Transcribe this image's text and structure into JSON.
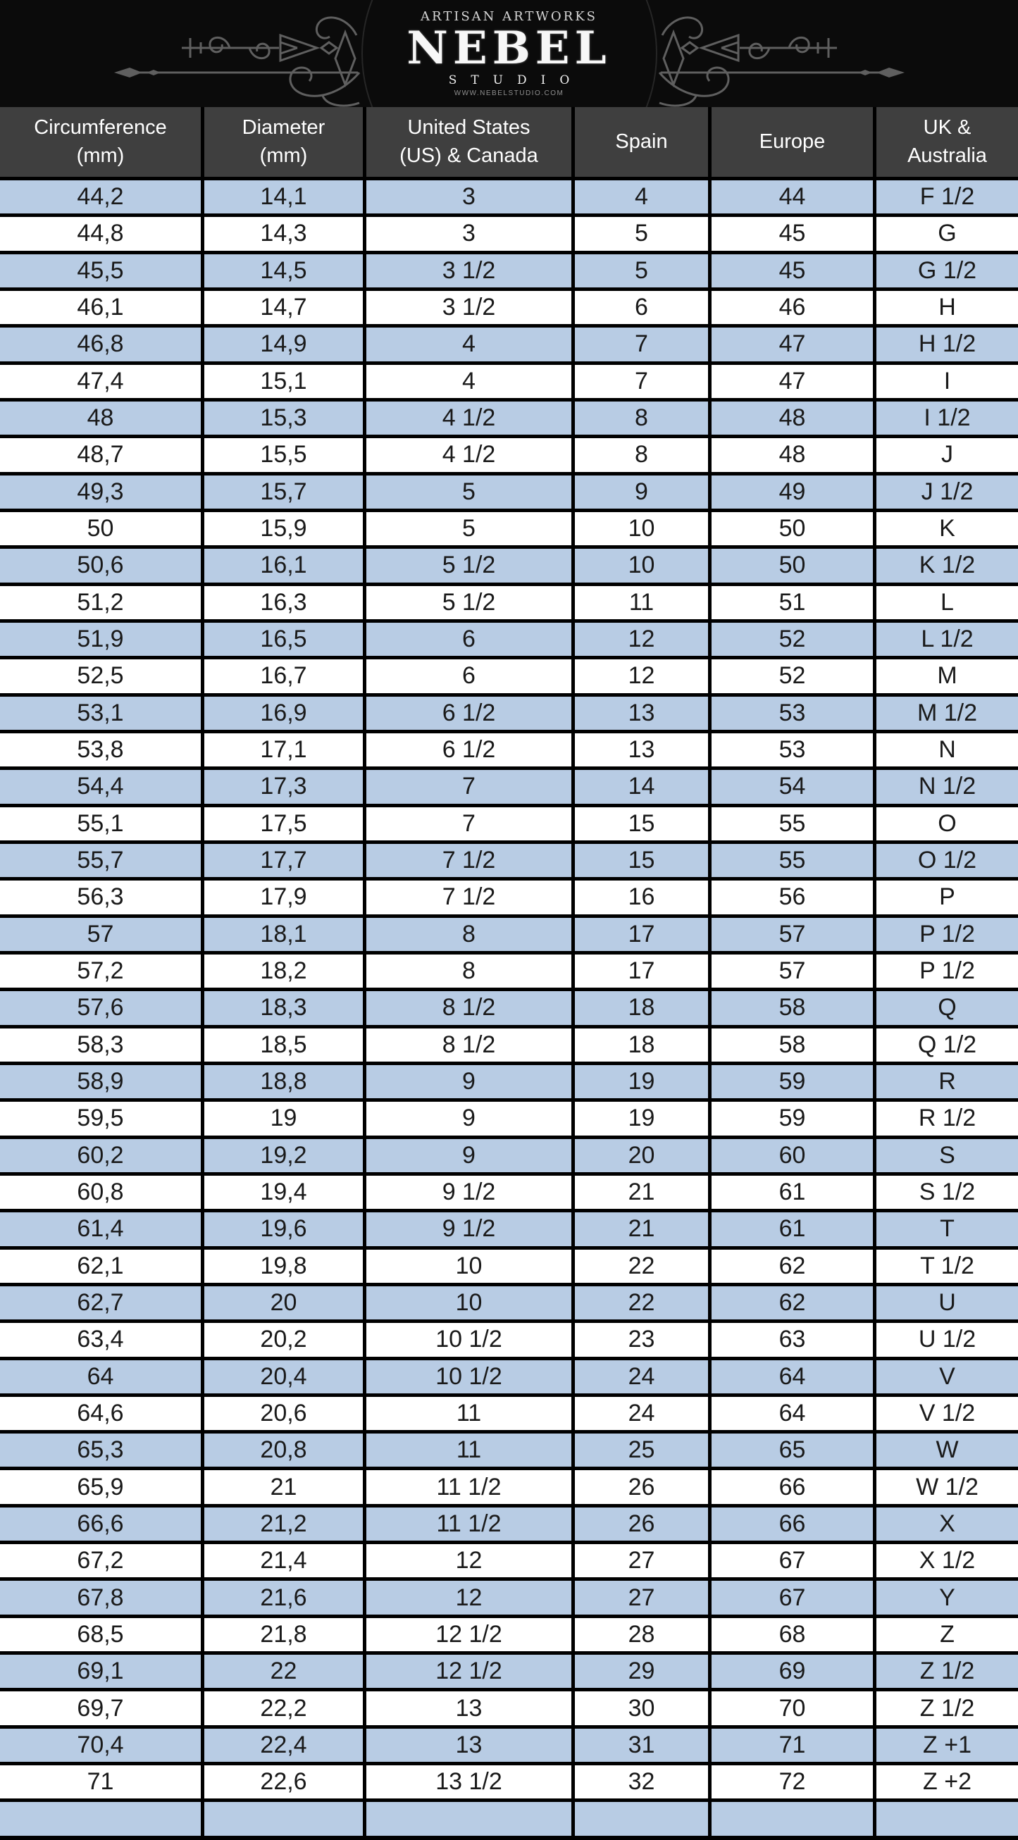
{
  "brand": {
    "tagline": "ARTISAN ARTWORKS",
    "name": "NEBEL",
    "subtitle": "STUDIO",
    "website": "WWW.NEBELSTUDIO.COM"
  },
  "table": {
    "header": [
      {
        "lines": [
          "Circumference",
          "(mm)"
        ]
      },
      {
        "lines": [
          "Diameter",
          "(mm)"
        ]
      },
      {
        "lines": [
          "United States",
          "(US) & Canada"
        ]
      },
      {
        "lines": [
          "Spain"
        ]
      },
      {
        "lines": [
          "Europe"
        ]
      },
      {
        "lines": [
          "UK &",
          "Australia"
        ]
      }
    ],
    "column_keys": [
      "circumference-mm",
      "diameter-mm",
      "us-canada",
      "spain",
      "europe",
      "uk-australia"
    ],
    "rows": [
      [
        "44,2",
        "14,1",
        "3",
        "4",
        "44",
        "F 1/2"
      ],
      [
        "44,8",
        "14,3",
        "3",
        "5",
        "45",
        "G"
      ],
      [
        "45,5",
        "14,5",
        "3 1/2",
        "5",
        "45",
        "G 1/2"
      ],
      [
        "46,1",
        "14,7",
        "3 1/2",
        "6",
        "46",
        "H"
      ],
      [
        "46,8",
        "14,9",
        "4",
        "7",
        "47",
        "H 1/2"
      ],
      [
        "47,4",
        "15,1",
        "4",
        "7",
        "47",
        "I"
      ],
      [
        "48",
        "15,3",
        "4 1/2",
        "8",
        "48",
        "I 1/2"
      ],
      [
        "48,7",
        "15,5",
        "4 1/2",
        "8",
        "48",
        "J"
      ],
      [
        "49,3",
        "15,7",
        "5",
        "9",
        "49",
        "J 1/2"
      ],
      [
        "50",
        "15,9",
        "5",
        "10",
        "50",
        "K"
      ],
      [
        "50,6",
        "16,1",
        "5 1/2",
        "10",
        "50",
        "K 1/2"
      ],
      [
        "51,2",
        "16,3",
        "5 1/2",
        "11",
        "51",
        "L"
      ],
      [
        "51,9",
        "16,5",
        "6",
        "12",
        "52",
        "L 1/2"
      ],
      [
        "52,5",
        "16,7",
        "6",
        "12",
        "52",
        "M"
      ],
      [
        "53,1",
        "16,9",
        "6 1/2",
        "13",
        "53",
        "M 1/2"
      ],
      [
        "53,8",
        "17,1",
        "6 1/2",
        "13",
        "53",
        "N"
      ],
      [
        "54,4",
        "17,3",
        "7",
        "14",
        "54",
        "N 1/2"
      ],
      [
        "55,1",
        "17,5",
        "7",
        "15",
        "55",
        "O"
      ],
      [
        "55,7",
        "17,7",
        "7 1/2",
        "15",
        "55",
        "O 1/2"
      ],
      [
        "56,3",
        "17,9",
        "7 1/2",
        "16",
        "56",
        "P"
      ],
      [
        "57",
        "18,1",
        "8",
        "17",
        "57",
        "P 1/2"
      ],
      [
        "57,2",
        "18,2",
        "8",
        "17",
        "57",
        "P 1/2"
      ],
      [
        "57,6",
        "18,3",
        "8 1/2",
        "18",
        "58",
        "Q"
      ],
      [
        "58,3",
        "18,5",
        "8 1/2",
        "18",
        "58",
        "Q 1/2"
      ],
      [
        "58,9",
        "18,8",
        "9",
        "19",
        "59",
        "R"
      ],
      [
        "59,5",
        "19",
        "9",
        "19",
        "59",
        "R 1/2"
      ],
      [
        "60,2",
        "19,2",
        "9",
        "20",
        "60",
        "S"
      ],
      [
        "60,8",
        "19,4",
        "9 1/2",
        "21",
        "61",
        "S 1/2"
      ],
      [
        "61,4",
        "19,6",
        "9 1/2",
        "21",
        "61",
        "T"
      ],
      [
        "62,1",
        "19,8",
        "10",
        "22",
        "62",
        "T 1/2"
      ],
      [
        "62,7",
        "20",
        "10",
        "22",
        "62",
        "U"
      ],
      [
        "63,4",
        "20,2",
        "10 1/2",
        "23",
        "63",
        "U 1/2"
      ],
      [
        "64",
        "20,4",
        "10 1/2",
        "24",
        "64",
        "V"
      ],
      [
        "64,6",
        "20,6",
        "11",
        "24",
        "64",
        "V 1/2"
      ],
      [
        "65,3",
        "20,8",
        "11",
        "25",
        "65",
        "W"
      ],
      [
        "65,9",
        "21",
        "11 1/2",
        "26",
        "66",
        "W 1/2"
      ],
      [
        "66,6",
        "21,2",
        "11 1/2",
        "26",
        "66",
        "X"
      ],
      [
        "67,2",
        "21,4",
        "12",
        "27",
        "67",
        "X 1/2"
      ],
      [
        "67,8",
        "21,6",
        "12",
        "27",
        "67",
        "Y"
      ],
      [
        "68,5",
        "21,8",
        "12 1/2",
        "28",
        "68",
        "Z"
      ],
      [
        "69,1",
        "22",
        "12 1/2",
        "29",
        "69",
        "Z 1/2"
      ],
      [
        "69,7",
        "22,2",
        "13",
        "30",
        "70",
        "Z 1/2"
      ],
      [
        "70,4",
        "22,4",
        "13",
        "31",
        "71",
        "Z +1"
      ],
      [
        "71",
        "22,6",
        "13 1/2",
        "32",
        "72",
        "Z +2"
      ],
      [
        "",
        "",
        "",
        "",
        "",
        ""
      ]
    ]
  },
  "colors": {
    "page_bg": "#000000",
    "band_bg": "#0b0b0b",
    "header_bg": "#3f3f3f",
    "header_text": "#ffffff",
    "row_blue": "#b8cce4",
    "row_white": "#ffffff",
    "grid": "#000000",
    "cell_text": "#1a1a1a",
    "ornament": "#6e6e6e"
  }
}
